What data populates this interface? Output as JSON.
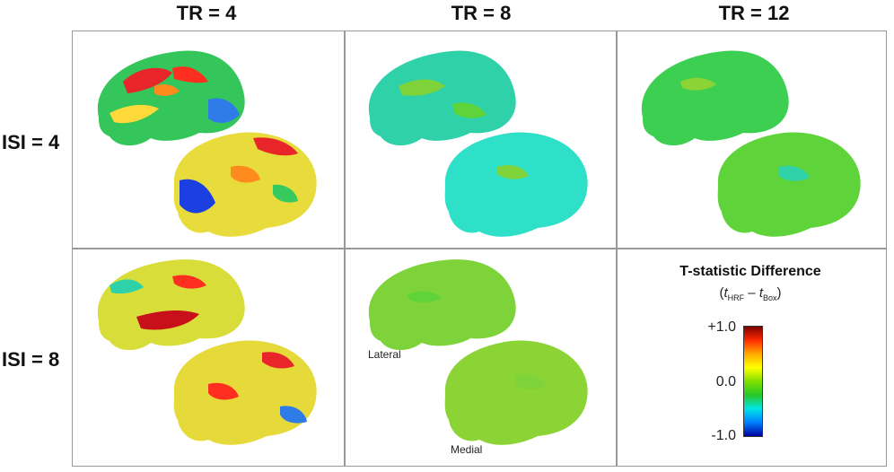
{
  "columns": [
    "TR = 4",
    "TR = 8",
    "TR = 12"
  ],
  "rows": [
    "ISI = 4",
    "ISI = 8"
  ],
  "view_labels": {
    "lateral": "Lateral",
    "medial": "Medial"
  },
  "legend": {
    "title": "T-statistic Difference",
    "expr_open": "(",
    "t1": "t",
    "t1_sub": "HRF",
    "minus": " – ",
    "t2": "t",
    "t2_sub": "Box",
    "expr_close": ")",
    "ticks": [
      "+1.0",
      "0.0",
      "-1.0"
    ],
    "colormap": [
      "#7f0000",
      "#ff2a00",
      "#ffaa00",
      "#ffff00",
      "#7fe000",
      "#28c828",
      "#00e5e5",
      "#0080ff",
      "#0000a0"
    ]
  },
  "panels": [
    {
      "name": "TR4-ISI4",
      "lateral": "#36c95e",
      "medial": "#e6e040"
    },
    {
      "name": "TR8-ISI4",
      "lateral": "#2fd1a8",
      "medial": "#2ee0c8"
    },
    {
      "name": "TR12-ISI4",
      "lateral": "#3ccf52",
      "medial": "#5fd43a"
    },
    {
      "name": "TR4-ISI8",
      "lateral": "#d9dd3a",
      "medial": "#e6d93a"
    },
    {
      "name": "TR8-ISI8",
      "lateral": "#7ed23a",
      "medial": "#8cd436"
    }
  ]
}
